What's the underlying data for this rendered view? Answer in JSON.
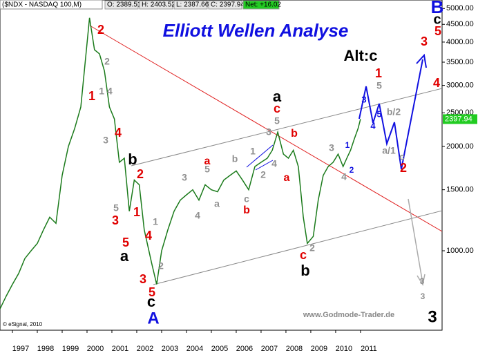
{
  "chart_data": {
    "type": "line",
    "symbol": "($NDX - NASDAQ 100,M)",
    "quote": [
      "O: 2389.51",
      "H: 2403.52",
      "L: 2387.66",
      "C: 2397.94",
      "Net: +16.02"
    ],
    "title": "Elliott Wellen Analyse",
    "source": "www.Godmode-Trader.de",
    "copyright": "© eSignal, 2010",
    "log_scale": true,
    "xlim": [
      1996.5,
      2014.28
    ],
    "xticks": [
      1997,
      1998,
      1999,
      2000,
      2001,
      2002,
      2003,
      2004,
      2005,
      2006,
      2007,
      2008,
      2009,
      2010,
      2011
    ],
    "ylim": [
      590,
      5290
    ],
    "yticks": [
      {
        "value": 1000,
        "label": "1000.00"
      },
      {
        "value": 1500,
        "label": "1500.00"
      },
      {
        "value": 2000,
        "label": "2000.00"
      },
      {
        "value": 2500,
        "label": "2500.00"
      },
      {
        "value": 3000,
        "label": "3000.00"
      },
      {
        "value": 3500,
        "label": "3500.00"
      },
      {
        "value": 4000,
        "label": "4000.00"
      },
      {
        "value": 4500,
        "label": "4500.00"
      },
      {
        "value": 5000,
        "label": "5000.00"
      }
    ],
    "x": [
      1996.5,
      1996.75,
      1997.0,
      1997.25,
      1997.5,
      1997.75,
      1998.0,
      1998.25,
      1998.5,
      1998.75,
      1999.0,
      1999.25,
      1999.5,
      1999.75,
      2000.1,
      2000.3,
      2000.5,
      2000.7,
      2000.9,
      2001.1,
      2001.3,
      2001.5,
      2001.7,
      2001.9,
      2002.1,
      2002.3,
      2002.6,
      2002.8,
      2003.0,
      2003.25,
      2003.5,
      2003.75,
      2004.0,
      2004.25,
      2004.5,
      2004.75,
      2005.0,
      2005.25,
      2005.5,
      2005.75,
      2006.0,
      2006.25,
      2006.5,
      2006.75,
      2007.0,
      2007.25,
      2007.45,
      2007.67,
      2007.9,
      2008.1,
      2008.3,
      2008.5,
      2008.7,
      2008.86,
      2009.1,
      2009.3,
      2009.5,
      2009.7,
      2009.9,
      2010.1,
      2010.3,
      2010.45,
      2010.6,
      2010.75,
      2010.9,
      2011.0
    ],
    "series": [
      {
        "name": "$NDX",
        "color": "#1a7a1a",
        "values": [
          680,
          740,
          800,
          860,
          950,
          1000,
          1050,
          1150,
          1250,
          1200,
          1650,
          2000,
          2250,
          2600,
          4700,
          3800,
          3700,
          3300,
          2600,
          2400,
          1800,
          1850,
          1300,
          1600,
          1550,
          1150,
          920,
          800,
          1000,
          1150,
          1300,
          1400,
          1450,
          1500,
          1400,
          1550,
          1500,
          1480,
          1600,
          1650,
          1700,
          1600,
          1500,
          1750,
          1800,
          1850,
          1950,
          2200,
          1900,
          1850,
          1950,
          1750,
          1250,
          1050,
          1100,
          1400,
          1650,
          1750,
          1800,
          1900,
          1750,
          1850,
          1950,
          2100,
          2250,
          2397.94
        ],
        "value_labels": [
          null,
          null,
          null,
          null,
          null,
          null,
          null,
          null,
          null,
          null,
          null,
          null,
          null,
          null,
          null,
          null,
          null,
          null,
          null,
          null,
          null,
          null,
          null,
          null,
          null,
          null,
          null,
          null,
          null,
          null,
          null,
          null,
          null,
          null,
          null,
          null,
          null,
          null,
          null,
          null,
          null,
          null,
          null,
          null,
          null,
          null,
          null,
          null,
          null,
          null,
          null,
          null,
          null,
          null,
          null,
          null,
          null,
          null,
          null,
          null,
          null,
          null,
          null,
          null,
          null,
          "2397.94"
        ]
      }
    ],
    "annotations": [
      {
        "text": "2",
        "color": "#e00000"
      },
      {
        "text": "2",
        "color": "#909090"
      },
      {
        "text": "1 4",
        "color": "#909090"
      },
      {
        "text": "1",
        "color": "#e00000"
      },
      {
        "text": "4",
        "color": "#e00000"
      },
      {
        "text": "3",
        "color": "#909090"
      },
      {
        "text": "b",
        "color": "#000000"
      },
      {
        "text": "2",
        "color": "#e00000"
      },
      {
        "text": "5",
        "color": "#909090"
      },
      {
        "text": "1",
        "color": "#e00000"
      },
      {
        "text": "3",
        "color": "#e00000"
      },
      {
        "text": "5",
        "color": "#e00000"
      },
      {
        "text": "a",
        "color": "#000000"
      },
      {
        "text": "4",
        "color": "#e00000"
      },
      {
        "text": "1",
        "color": "#909090"
      },
      {
        "text": "3",
        "color": "#909090"
      },
      {
        "text": "5",
        "color": "#909090"
      },
      {
        "text": "a",
        "color": "#e00000"
      },
      {
        "text": "4",
        "color": "#909090"
      },
      {
        "text": "a",
        "color": "#909090"
      },
      {
        "text": "2",
        "color": "#909090"
      },
      {
        "text": "3",
        "color": "#e00000"
      },
      {
        "text": "5",
        "color": "#e00000"
      },
      {
        "text": "c",
        "color": "#000000"
      },
      {
        "text": "A",
        "color": "#1010e0"
      },
      {
        "text": "b",
        "color": "#909090"
      },
      {
        "text": "c",
        "color": "#909090"
      },
      {
        "text": "b",
        "color": "#e00000"
      },
      {
        "text": "1",
        "color": "#909090"
      },
      {
        "text": "2",
        "color": "#909090"
      },
      {
        "text": "3",
        "color": "#909090"
      },
      {
        "text": "4",
        "color": "#909090"
      },
      {
        "text": "5",
        "color": "#909090"
      },
      {
        "text": "a",
        "color": "#000000"
      },
      {
        "text": "c",
        "color": "#e00000"
      },
      {
        "text": "b",
        "color": "#e00000"
      },
      {
        "text": "a",
        "color": "#e00000"
      },
      {
        "text": "c",
        "color": "#e00000"
      },
      {
        "text": "2",
        "color": "#909090"
      },
      {
        "text": "b",
        "color": "#000000"
      },
      {
        "text": "3",
        "color": "#909090"
      },
      {
        "text": "1",
        "color": "#1010e0"
      },
      {
        "text": "2",
        "color": "#1010e0"
      },
      {
        "text": "4",
        "color": "#909090"
      },
      {
        "text": "3",
        "color": "#1010e0"
      },
      {
        "text": "4",
        "color": "#1010e0"
      },
      {
        "text": "5",
        "color": "#1010e0"
      },
      {
        "text": "5",
        "color": "#909090"
      },
      {
        "text": "1",
        "color": "#e00000"
      },
      {
        "text": "Alt:c",
        "color": "#000000"
      },
      {
        "text": "b/2",
        "color": "#909090"
      },
      {
        "text": "a/1",
        "color": "#909090"
      },
      {
        "text": "c",
        "color": "#909090"
      },
      {
        "text": "2",
        "color": "#e00000"
      },
      {
        "text": "3",
        "color": "#e00000"
      },
      {
        "text": "4",
        "color": "#e00000"
      },
      {
        "text": "B",
        "color": "#1010e0"
      },
      {
        "text": "c",
        "color": "#000000"
      },
      {
        "text": "5",
        "color": "#e00000"
      },
      {
        "text": "3",
        "color": "#909090"
      },
      {
        "text": "3",
        "color": "#909090"
      },
      {
        "text": "3",
        "color": "#000000"
      }
    ]
  }
}
